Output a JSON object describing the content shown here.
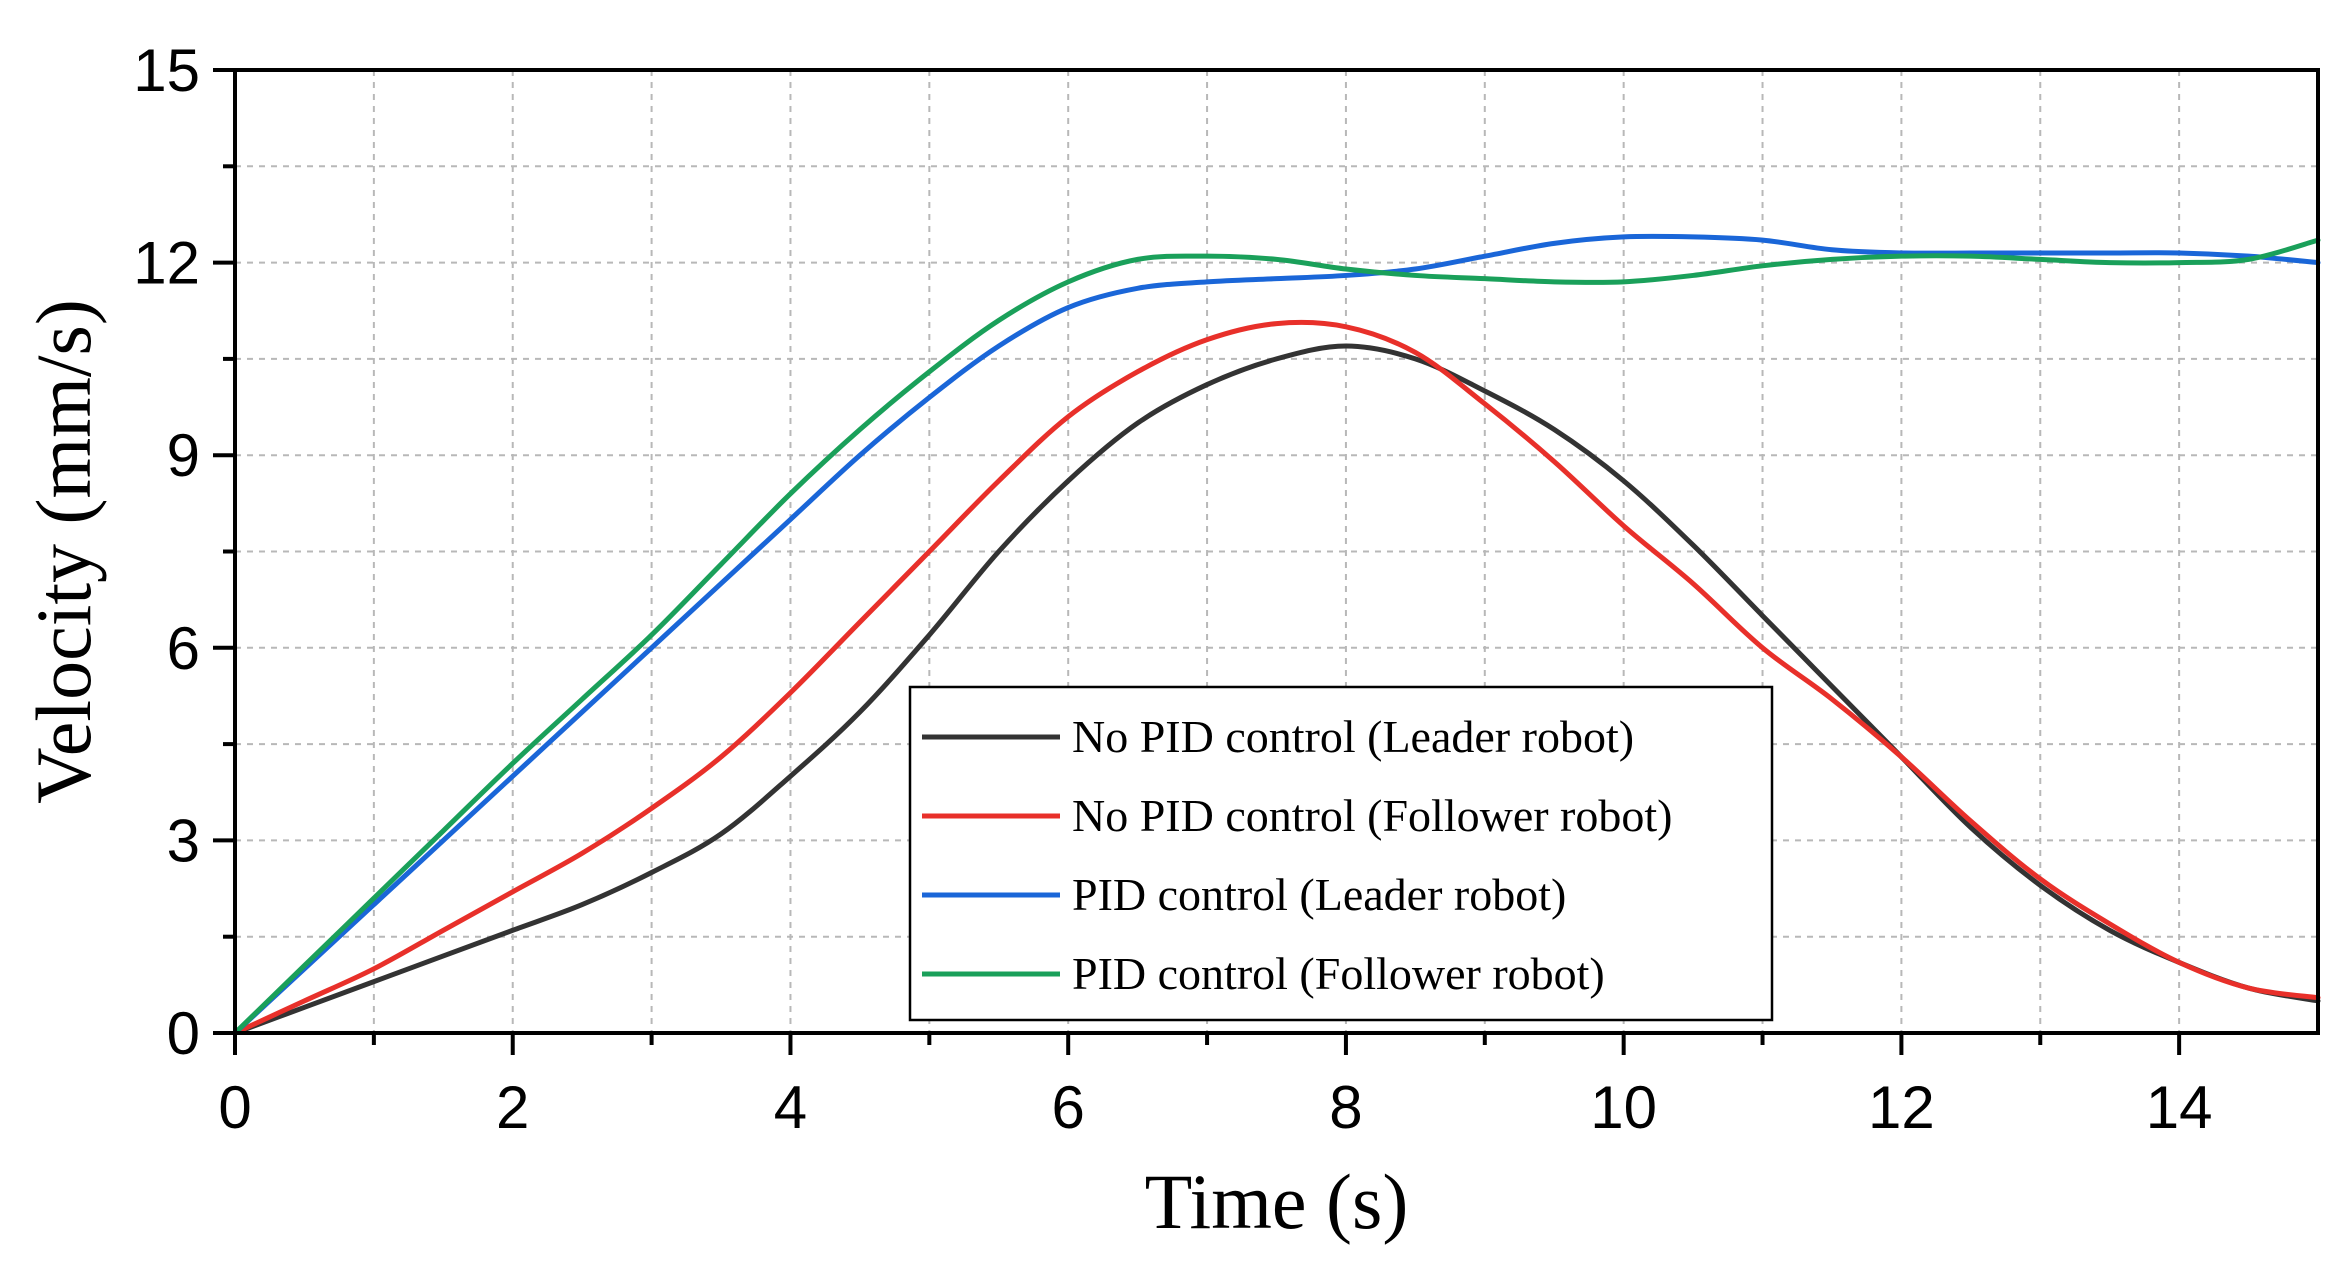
{
  "chart_data": {
    "type": "line",
    "title": "",
    "xlabel": "Time (s)",
    "ylabel": "Velocity (mm/s)",
    "xlim": [
      0,
      15
    ],
    "ylim": [
      0,
      15
    ],
    "x_ticks": [
      0,
      2,
      4,
      6,
      8,
      10,
      12,
      14
    ],
    "y_ticks": [
      0,
      3,
      6,
      9,
      12,
      15
    ],
    "x_tick_labels": [
      "0",
      "2",
      "4",
      "6",
      "8",
      "10",
      "12",
      "14"
    ],
    "y_tick_labels": [
      "0",
      "3",
      "6",
      "9",
      "12",
      "15"
    ],
    "grid": true,
    "legend_position": "center-bottom",
    "series": [
      {
        "name": "No PID control (Leader robot)",
        "color": "#333333",
        "x": [
          0,
          0.5,
          1,
          1.5,
          2,
          2.5,
          3,
          3.5,
          4,
          4.5,
          5,
          5.5,
          6,
          6.5,
          7,
          7.5,
          8,
          8.5,
          9,
          9.5,
          10,
          10.5,
          11,
          11.5,
          12,
          12.5,
          13,
          13.5,
          14,
          14.5,
          15
        ],
        "y": [
          0,
          0.4,
          0.8,
          1.2,
          1.6,
          2.0,
          2.5,
          3.1,
          4.0,
          5.0,
          6.2,
          7.5,
          8.6,
          9.5,
          10.1,
          10.5,
          10.7,
          10.5,
          10.0,
          9.4,
          8.6,
          7.6,
          6.5,
          5.4,
          4.3,
          3.2,
          2.3,
          1.6,
          1.1,
          0.7,
          0.5
        ]
      },
      {
        "name": "No PID control (Follower robot)",
        "color": "#e8302a",
        "x": [
          0,
          0.5,
          1,
          1.5,
          2,
          2.5,
          3,
          3.5,
          4,
          4.5,
          5,
          5.5,
          6,
          6.5,
          7,
          7.5,
          8,
          8.5,
          9,
          9.5,
          10,
          10.5,
          11,
          11.5,
          12,
          12.5,
          13,
          13.5,
          14,
          14.5,
          15
        ],
        "y": [
          0,
          0.5,
          1.0,
          1.6,
          2.2,
          2.8,
          3.5,
          4.3,
          5.3,
          6.4,
          7.5,
          8.6,
          9.6,
          10.3,
          10.8,
          11.05,
          11.0,
          10.6,
          9.8,
          8.9,
          7.9,
          7.0,
          6.0,
          5.2,
          4.3,
          3.3,
          2.4,
          1.7,
          1.1,
          0.7,
          0.55
        ]
      },
      {
        "name": "PID control (Leader robot)",
        "color": "#1a66d8",
        "x": [
          0,
          0.5,
          1,
          1.5,
          2,
          2.5,
          3,
          3.5,
          4,
          4.5,
          5,
          5.5,
          6,
          6.5,
          7,
          7.5,
          8,
          8.5,
          9,
          9.5,
          10,
          10.5,
          11,
          11.5,
          12,
          12.5,
          13,
          13.5,
          14,
          14.5,
          15
        ],
        "y": [
          0,
          1.0,
          2.0,
          3.0,
          4.0,
          5.0,
          6.0,
          7.0,
          8.0,
          9.0,
          9.9,
          10.7,
          11.3,
          11.6,
          11.7,
          11.75,
          11.8,
          11.9,
          12.1,
          12.3,
          12.4,
          12.4,
          12.35,
          12.2,
          12.15,
          12.15,
          12.15,
          12.15,
          12.15,
          12.1,
          12.0
        ]
      },
      {
        "name": "PID control (Follower robot)",
        "color": "#1aa05a",
        "x": [
          0,
          0.5,
          1,
          1.5,
          2,
          2.5,
          3,
          3.5,
          4,
          4.5,
          5,
          5.5,
          6,
          6.5,
          7,
          7.5,
          8,
          8.5,
          9,
          9.5,
          10,
          10.5,
          11,
          11.5,
          12,
          12.5,
          13,
          13.5,
          14,
          14.5,
          15
        ],
        "y": [
          0,
          1.05,
          2.1,
          3.15,
          4.2,
          5.2,
          6.2,
          7.3,
          8.4,
          9.4,
          10.3,
          11.1,
          11.7,
          12.05,
          12.1,
          12.05,
          11.9,
          11.8,
          11.75,
          11.7,
          11.7,
          11.8,
          11.95,
          12.05,
          12.1,
          12.1,
          12.05,
          12.0,
          12.0,
          12.05,
          12.35
        ]
      }
    ]
  }
}
